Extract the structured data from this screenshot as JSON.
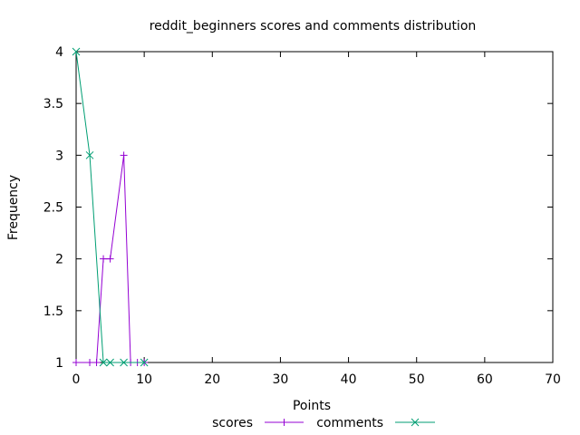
{
  "chart_data": {
    "type": "line",
    "title": "reddit_beginners scores and comments distribution",
    "xlabel": "Points",
    "ylabel": "Frequency",
    "xlim": [
      0,
      70
    ],
    "ylim": [
      1,
      4
    ],
    "xticks": [
      "0",
      "10",
      "20",
      "30",
      "40",
      "50",
      "60",
      "70"
    ],
    "yticks": [
      "1",
      "1.5",
      "2",
      "2.5",
      "3",
      "3.5",
      "4"
    ],
    "grid": false,
    "legend_position": "bottom-center",
    "series": [
      {
        "name": "scores",
        "color": "#9400d3",
        "marker": "plus",
        "x": [
          0,
          2,
          3,
          4,
          5,
          7,
          8,
          9,
          10
        ],
        "y": [
          1,
          1,
          1,
          2,
          2,
          3,
          1,
          1,
          1
        ]
      },
      {
        "name": "comments",
        "color": "#009e73",
        "marker": "cross",
        "x": [
          0,
          2,
          4,
          5,
          7,
          10
        ],
        "y": [
          4,
          3,
          1,
          1,
          1,
          1
        ]
      }
    ]
  }
}
